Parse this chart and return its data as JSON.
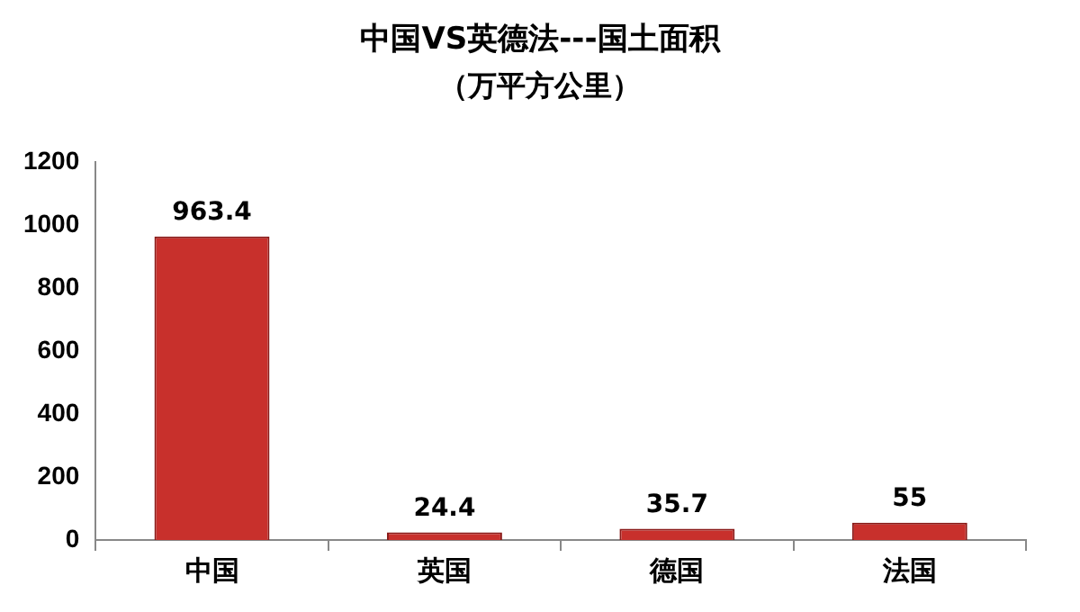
{
  "chart_data": {
    "type": "bar",
    "title": "中国VS英德法---国土面积",
    "subtitle": "（万平方公里）",
    "categories": [
      "中国",
      "英国",
      "德国",
      "法国"
    ],
    "values": [
      963.4,
      24.4,
      35.7,
      55
    ],
    "color": "#c8302c",
    "ylim": [
      0,
      1200
    ],
    "yticks": [
      0,
      200,
      400,
      600,
      800,
      1000,
      1200
    ],
    "grid": false,
    "legend": false,
    "data_labels": true
  }
}
